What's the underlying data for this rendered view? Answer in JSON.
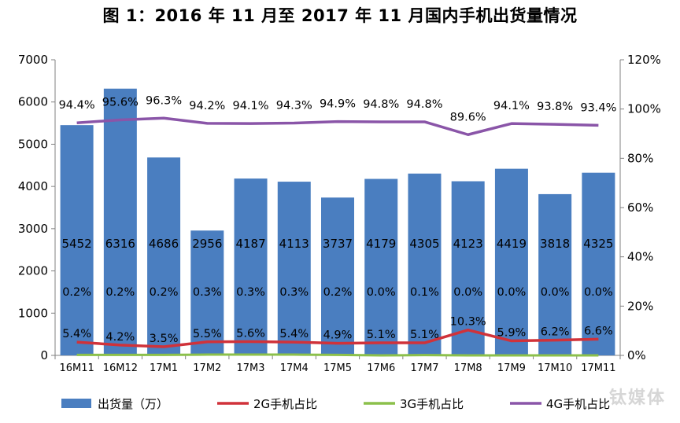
{
  "title": "图 1：2016 年 11 月至 2017 年 11 月国内手机出货量情况",
  "watermark": "钛媒体",
  "chart_data": {
    "type": "bar",
    "title": "图 1：2016 年 11 月至 2017 年 11 月国内手机出货量情况",
    "categories": [
      "16M11",
      "16M12",
      "17M1",
      "17M2",
      "17M3",
      "17M4",
      "17M5",
      "17M6",
      "17M7",
      "17M8",
      "17M9",
      "17M10",
      "17M11"
    ],
    "y_left": {
      "ticks": [
        0,
        1000,
        2000,
        3000,
        4000,
        5000,
        6000,
        7000
      ],
      "range": [
        0,
        7000
      ]
    },
    "y_right": {
      "ticks": [
        "0%",
        "20%",
        "40%",
        "60%",
        "80%",
        "100%",
        "120%"
      ],
      "range": [
        0,
        120
      ]
    },
    "grid": false,
    "legend_position": "bottom",
    "series": [
      {
        "name": "出货量（万）",
        "type": "bar",
        "axis": "left",
        "color": "#4a7ec0",
        "values": [
          5452,
          6316,
          4686,
          2956,
          4187,
          4113,
          3737,
          4179,
          4305,
          4123,
          4419,
          3818,
          4325
        ],
        "labels": [
          "5452",
          "6316",
          "4686",
          "2956",
          "4187",
          "4113",
          "3737",
          "4179",
          "4305",
          "4123",
          "4419",
          "3818",
          "4325"
        ]
      },
      {
        "name": "2G手机占比",
        "type": "line",
        "axis": "right",
        "color": "#d0323a",
        "values": [
          5.4,
          4.2,
          3.5,
          5.5,
          5.6,
          5.4,
          4.9,
          5.1,
          5.1,
          10.3,
          5.9,
          6.2,
          6.6
        ],
        "labels": [
          "5.4%",
          "4.2%",
          "3.5%",
          "5.5%",
          "5.6%",
          "5.4%",
          "4.9%",
          "5.1%",
          "5.1%",
          "10.3%",
          "5.9%",
          "6.2%",
          "6.6%"
        ]
      },
      {
        "name": "3G手机占比",
        "type": "line",
        "axis": "right",
        "color": "#8cc04b",
        "values": [
          0.2,
          0.2,
          0.2,
          0.3,
          0.3,
          0.3,
          0.2,
          0.0,
          0.1,
          0.0,
          0.0,
          0.0,
          0.0
        ],
        "labels": [
          "0.2%",
          "0.2%",
          "0.2%",
          "0.3%",
          "0.3%",
          "0.3%",
          "0.2%",
          "0.0%",
          "0.1%",
          "0.0%",
          "0.0%",
          "0.0%",
          "0.0%"
        ]
      },
      {
        "name": "4G手机占比",
        "type": "line",
        "axis": "right",
        "color": "#8a55a8",
        "values": [
          94.4,
          95.6,
          96.3,
          94.2,
          94.1,
          94.3,
          94.9,
          94.8,
          94.8,
          89.6,
          94.1,
          93.8,
          93.4
        ],
        "labels": [
          "94.4%",
          "95.6%",
          "96.3%",
          "94.2%",
          "94.1%",
          "94.3%",
          "94.9%",
          "94.8%",
          "94.8%",
          "89.6%",
          "94.1%",
          "93.8%",
          "93.4%"
        ]
      }
    ]
  }
}
